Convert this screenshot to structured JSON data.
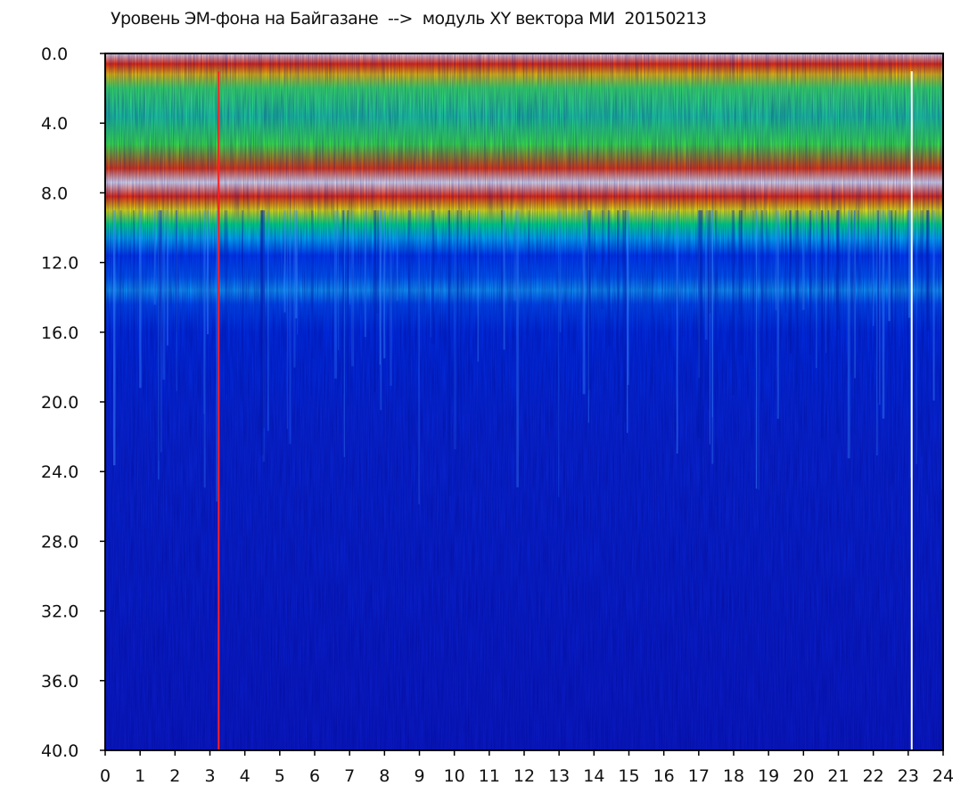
{
  "chart_data": {
    "type": "heatmap",
    "title": "Уровень ЭМ-фона на Байгазане  -->  модуль XY вектора МИ  20150213",
    "xlabel": "",
    "ylabel": "",
    "xlim": [
      0,
      24
    ],
    "ylim": [
      0.0,
      40.0
    ],
    "y_inverted": true,
    "x_ticks": [
      "0",
      "1",
      "2",
      "3",
      "4",
      "5",
      "6",
      "7",
      "8",
      "9",
      "10",
      "11",
      "12",
      "13",
      "14",
      "15",
      "16",
      "17",
      "18",
      "19",
      "20",
      "21",
      "22",
      "23",
      "24"
    ],
    "y_ticks": [
      "0.0",
      "4.0",
      "8.0",
      "12.0",
      "16.0",
      "20.0",
      "24.0",
      "28.0",
      "32.0",
      "36.0",
      "40.0"
    ],
    "colormap": [
      "#0a1ec8",
      "#0050ff",
      "#00c8ff",
      "#20ff60",
      "#ffff00",
      "#ff2000",
      "#ffffff"
    ],
    "markers": [
      {
        "x": 3.25,
        "color": "#ff2020"
      },
      {
        "x": 23.1,
        "color": "#ffffff"
      }
    ],
    "intensity_profile": [
      {
        "y": 0.5,
        "level": 0.85
      },
      {
        "y": 2.0,
        "level": 0.7
      },
      {
        "y": 4.0,
        "level": 0.55
      },
      {
        "y": 6.0,
        "level": 0.65
      },
      {
        "y": 7.5,
        "level": 0.95
      },
      {
        "y": 8.5,
        "level": 0.8
      },
      {
        "y": 10.0,
        "level": 0.35
      },
      {
        "y": 13.0,
        "level": 0.3
      },
      {
        "y": 15.0,
        "level": 0.15
      },
      {
        "y": 20.0,
        "level": 0.08
      },
      {
        "y": 40.0,
        "level": 0.03
      }
    ]
  }
}
